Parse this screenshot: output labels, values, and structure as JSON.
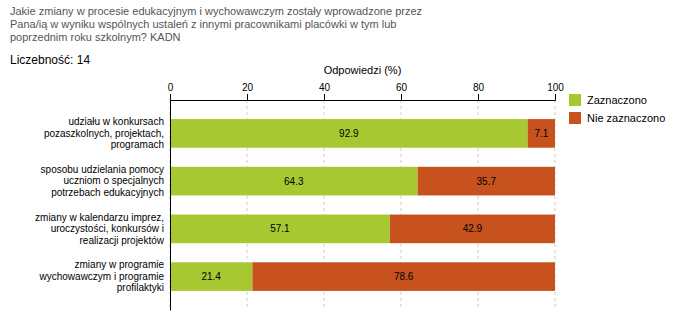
{
  "chart_data": {
    "type": "bar",
    "orientation": "horizontal",
    "stacked": true,
    "title": "Jakie zmiany w procesie edukacyjnym i wychowawczym zostały wprowadzone przez\nPana/ią w wyniku wspólnych ustaleń z innymi pracownikami placówki w tym lub\npoprzednim roku szkolnym? KADN",
    "subtitle": "Liczebność: 14",
    "x_label": "Odpowiedzi (%)",
    "categories": [
      "udziału w konkursach\npozaszkolnych, projektach,\nprogramach",
      "sposobu udzielania pomocy\nuczniom o specjalnych\npotrzebach edukacyjnych",
      "zmiany w kalendarzu imprez,\nuroczystości, konkursów i\nrealizacji projektów",
      "zmiany w programie\nwychowawczym i programie\nprofilaktyki"
    ],
    "series": [
      {
        "name": "Zaznaczono",
        "color": "#a8c832",
        "values": [
          92.9,
          64.3,
          57.1,
          21.4
        ]
      },
      {
        "name": "Nie zaznaczono",
        "color": "#c8521e",
        "values": [
          7.1,
          35.7,
          42.9,
          78.6
        ]
      }
    ],
    "xlim": [
      0,
      100
    ],
    "xticks": [
      0,
      20,
      40,
      60,
      80,
      100
    ],
    "grid": true,
    "legend": "right",
    "data_labels": true
  }
}
